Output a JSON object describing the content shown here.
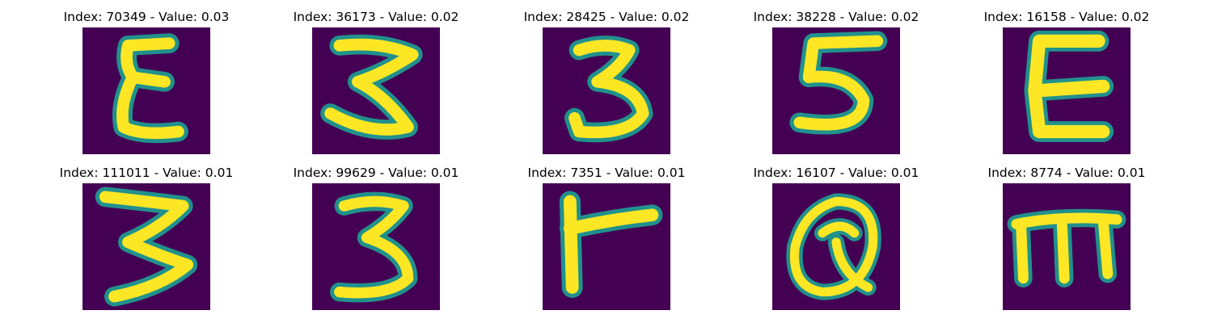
{
  "colors": {
    "background": "#440154",
    "glyph": "#fde725",
    "glyph_edge": "#21918c"
  },
  "panels": [
    {
      "title": "Index: 70349 - Value: 0.03",
      "glyph": "E"
    },
    {
      "title": "Index: 36173 - Value: 0.02",
      "glyph": "3"
    },
    {
      "title": "Index: 28425 - Value: 0.02",
      "glyph": "3"
    },
    {
      "title": "Index: 38228 - Value: 0.02",
      "glyph": "5"
    },
    {
      "title": "Index: 16158 - Value: 0.02",
      "glyph": "E"
    },
    {
      "title": "Index: 111011 - Value: 0.01",
      "glyph": "3"
    },
    {
      "title": "Index: 99629 - Value: 0.01",
      "glyph": "3"
    },
    {
      "title": "Index: 7351 - Value: 0.01",
      "glyph": "r"
    },
    {
      "title": "Index: 16107 - Value: 0.01",
      "glyph": "Q"
    },
    {
      "title": "Index: 8774 - Value: 0.01",
      "glyph": "m"
    }
  ]
}
